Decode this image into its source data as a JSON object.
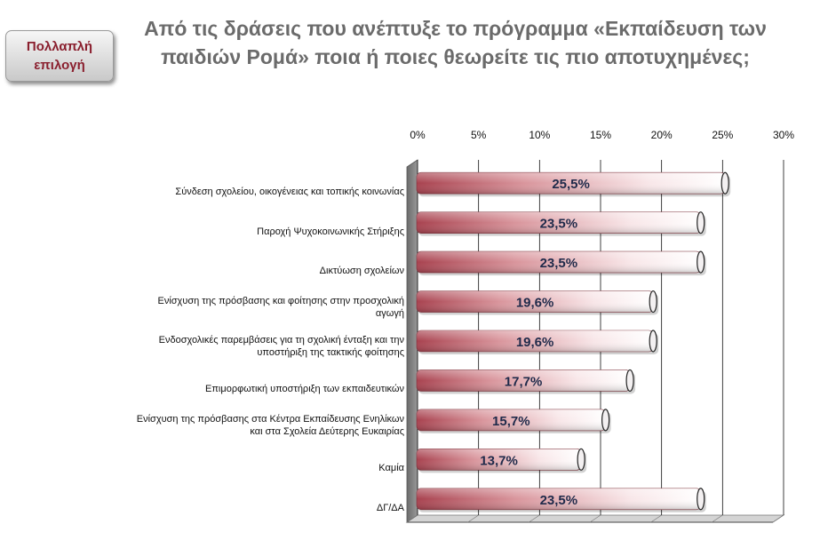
{
  "badge": {
    "line1": "Πολλαπλή",
    "line2": "επιλογή"
  },
  "title": {
    "line1": "Από τις δράσεις που ανέπτυξε το πρόγραμμα «Εκπαίδευση των",
    "line2": "παιδιών Ρομά» ποια ή ποιες θεωρείτε τις πιο αποτυχημένες;"
  },
  "chart_data": {
    "type": "bar",
    "orientation": "horizontal",
    "categories": [
      "Σύνδεση σχολείου, οικογένειας και τοπικής κοινωνίας",
      "Παροχή  Ψυχοκοινωνικής Στήριξης",
      "Δικτύωση  σχολείων",
      "Ενίσχυση της πρόσβασης  και φοίτησης  στην προσχολική αγωγή",
      "Ενδοσχολικές παρεμβάσεις  για τη σχολική ένταξη και την υποστήριξη της τακτικής φοίτησης",
      "Επιμορφωτική  υποστήριξη των  εκπαιδευτικών",
      "Ενίσχυση της πρόσβασης  στα Κέντρα Εκπαίδευσης Ενηλίκων και στα Σχολεία Δεύτερης  Ευκαιρίας",
      "Καμία",
      "ΔΓ/ΔΑ"
    ],
    "category_lines": [
      [
        "Σύνδεση σχολείου, οικογένειας και τοπικής κοινωνίας"
      ],
      [
        "Παροχή  Ψυχοκοινωνικής Στήριξης"
      ],
      [
        "Δικτύωση  σχολείων"
      ],
      [
        "Ενίσχυση της πρόσβασης  και φοίτησης  στην προσχολική",
        "αγωγή"
      ],
      [
        "Ενδοσχολικές παρεμβάσεις  για τη σχολική ένταξη και την",
        "υποστήριξη της τακτικής φοίτησης"
      ],
      [
        "Επιμορφωτική  υποστήριξη των  εκπαιδευτικών"
      ],
      [
        "Ενίσχυση της πρόσβασης  στα Κέντρα Εκπαίδευσης Ενηλίκων",
        "και στα Σχολεία Δεύτερης  Ευκαιρίας"
      ],
      [
        "Καμία"
      ],
      [
        "ΔΓ/ΔΑ"
      ]
    ],
    "values": [
      25.5,
      23.5,
      23.5,
      19.6,
      19.6,
      17.7,
      15.7,
      13.7,
      23.5
    ],
    "data_labels": [
      "25,5%",
      "23,5%",
      "23,5%",
      "19,6%",
      "19,6%",
      "17,7%",
      "15,7%",
      "13,7%",
      "23,5%"
    ],
    "x_ticks": [
      "0%",
      "5%",
      "10%",
      "15%",
      "20%",
      "25%",
      "30%"
    ],
    "xlim": [
      0,
      30
    ],
    "axis_position": "top",
    "grid": true,
    "legend": "none",
    "colors": {
      "bar_dark": "#b04a55",
      "bar_light": "#ffffff",
      "label": "#1f2a4a"
    }
  }
}
